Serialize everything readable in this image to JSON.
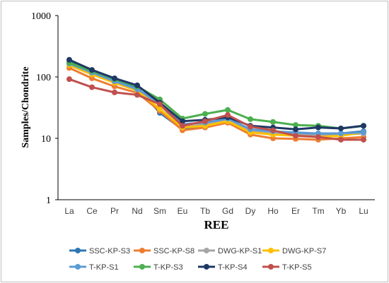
{
  "chart_data": {
    "type": "line",
    "xlabel": "REE",
    "ylabel": "Samples/Chondrite",
    "yscale": "log",
    "ylim": [
      1,
      1000
    ],
    "yticks": [
      "1",
      "10",
      "100",
      "1000"
    ],
    "grid": false,
    "legend_position": "bottom",
    "categories": [
      "La",
      "Ce",
      "Pr",
      "Nd",
      "Sm",
      "Eu",
      "Tb",
      "Gd",
      "Dy",
      "Ho",
      "Er",
      "Tm",
      "Yb",
      "Lu"
    ],
    "series": [
      {
        "name": "SSC-KP-S3",
        "color": "#2e75b6",
        "values": [
          175,
          125,
          90,
          68,
          26,
          14,
          16,
          18,
          13,
          12,
          12,
          12,
          12,
          13
        ]
      },
      {
        "name": "SSC-KP-S8",
        "color": "#ed7d31",
        "values": [
          140,
          95,
          70,
          55,
          28,
          13.5,
          15,
          18,
          11.5,
          10,
          9.8,
          9.5,
          10,
          10.5
        ]
      },
      {
        "name": "DWG-KP-S1",
        "color": "#a5a5a5",
        "values": [
          160,
          115,
          82,
          62,
          35,
          15,
          17,
          20,
          13,
          12,
          11.5,
          11,
          11.5,
          12
        ]
      },
      {
        "name": "DWG-KP-S7",
        "color": "#ffc000",
        "values": [
          155,
          110,
          80,
          60,
          30,
          15,
          16,
          19,
          12.5,
          11.5,
          11,
          10.5,
          11,
          12.5
        ]
      },
      {
        "name": "T-KP-S1",
        "color": "#5b9bd5",
        "values": [
          165,
          118,
          85,
          63,
          38,
          17,
          18,
          21,
          14,
          13,
          12.5,
          12,
          12,
          12.5
        ]
      },
      {
        "name": "T-KP-S3",
        "color": "#4caf50",
        "values": [
          170,
          125,
          92,
          70,
          43,
          21,
          25,
          29,
          20.5,
          18.5,
          16.5,
          16,
          14.5,
          16
        ]
      },
      {
        "name": "T-KP-S4",
        "color": "#1f3864",
        "values": [
          190,
          130,
          95,
          73,
          38,
          19,
          20,
          22,
          16,
          15,
          14,
          15,
          14.5,
          16
        ]
      },
      {
        "name": "T-KP-S5",
        "color": "#c0504d",
        "values": [
          92,
          68,
          56,
          51,
          36,
          16,
          19,
          24,
          15.5,
          13.5,
          11,
          10.5,
          9.5,
          9.5
        ]
      }
    ]
  }
}
